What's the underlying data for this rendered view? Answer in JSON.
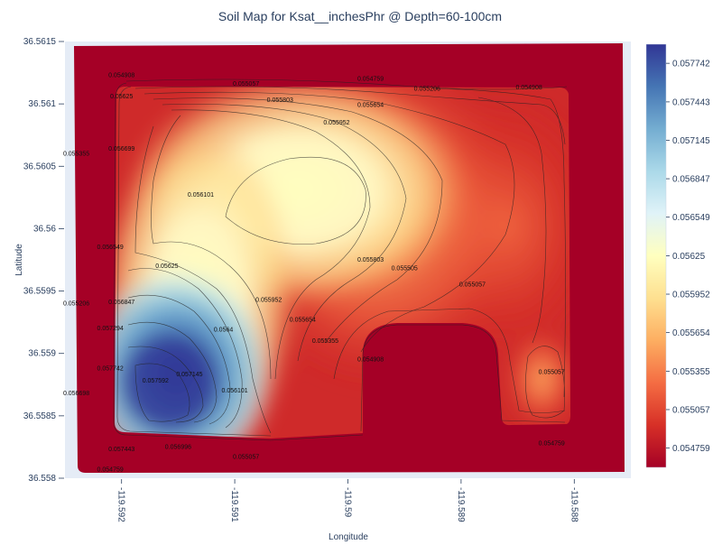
{
  "chart_data": {
    "type": "heatmap",
    "subtype": "contour",
    "title": "Soil Map for Ksat__inchesPhr @ Depth=60-100cm",
    "xlabel": "Longitude",
    "ylabel": "Latitude",
    "x_ticks": [
      "-119.592",
      "-119.591",
      "-119.59",
      "-119.589",
      "-119.588"
    ],
    "x_tick_values": [
      -119.592,
      -119.591,
      -119.59,
      -119.589,
      -119.588
    ],
    "xlim": [
      -119.5925,
      -119.5875
    ],
    "y_ticks": [
      "36.558",
      "36.5585",
      "36.559",
      "36.5595",
      "36.56",
      "36.5605",
      "36.561",
      "36.5615"
    ],
    "y_tick_values": [
      36.558,
      36.5585,
      36.559,
      36.5595,
      36.56,
      36.5605,
      36.561,
      36.5615
    ],
    "ylim": [
      36.558,
      36.5615
    ],
    "colorscale": [
      "#a50026",
      "#d73027",
      "#f46d43",
      "#fdae61",
      "#fee090",
      "#ffffbf",
      "#e0f3f8",
      "#abd9e9",
      "#74add1",
      "#4575b4",
      "#313695"
    ],
    "colorbar": {
      "min": 0.054609,
      "max": 0.05789,
      "ticks": [
        "0.057742",
        "0.057443",
        "0.057145",
        "0.056847",
        "0.056549",
        "0.05625",
        "0.055952",
        "0.055654",
        "0.055355",
        "0.055057",
        "0.054759"
      ],
      "tick_values": [
        0.057742,
        0.057443,
        0.057145,
        0.056847,
        0.056549,
        0.05625,
        0.055952,
        0.055654,
        0.055355,
        0.055057,
        0.054759
      ]
    },
    "contour_levels": [
      0.054759,
      0.054908,
      0.055057,
      0.055206,
      0.055355,
      0.055505,
      0.055654,
      0.055803,
      0.055952,
      0.056101,
      0.05625,
      0.0564,
      0.056549,
      0.056698,
      0.056847,
      0.056996,
      0.057145,
      0.057294,
      0.057443,
      0.057593,
      0.057742
    ],
    "contour_labels": [
      {
        "text": "0.054908",
        "lon": -119.592,
        "lat": 36.56123
      },
      {
        "text": "0.055057",
        "lon": -119.5909,
        "lat": 36.56116
      },
      {
        "text": "0.054759",
        "lon": -119.5898,
        "lat": 36.5612
      },
      {
        "text": "0.055206",
        "lon": -119.5893,
        "lat": 36.56112
      },
      {
        "text": "0.054908",
        "lon": -119.5884,
        "lat": 36.56113
      },
      {
        "text": "0.05625",
        "lon": -119.592,
        "lat": 36.56106
      },
      {
        "text": "0.055803",
        "lon": -119.5906,
        "lat": 36.56103
      },
      {
        "text": "0.055654",
        "lon": -119.5898,
        "lat": 36.56099
      },
      {
        "text": "0.055952",
        "lon": -119.5901,
        "lat": 36.56085
      },
      {
        "text": "0.056699",
        "lon": -119.592,
        "lat": 36.56064
      },
      {
        "text": "0.055355",
        "lon": -119.5924,
        "lat": 36.5606
      },
      {
        "text": "0.056101",
        "lon": -119.5913,
        "lat": 36.56027
      },
      {
        "text": "0.056549",
        "lon": -119.5921,
        "lat": 36.55985
      },
      {
        "text": "0.05625",
        "lon": -119.5916,
        "lat": 36.5597
      },
      {
        "text": "0.055803",
        "lon": -119.5898,
        "lat": 36.55975
      },
      {
        "text": "0.055505",
        "lon": -119.5895,
        "lat": 36.55968
      },
      {
        "text": "0.055057",
        "lon": -119.5889,
        "lat": 36.55955
      },
      {
        "text": "0.056847",
        "lon": -119.592,
        "lat": 36.55941
      },
      {
        "text": "0.055952",
        "lon": -119.5907,
        "lat": 36.55943
      },
      {
        "text": "0.055654",
        "lon": -119.5904,
        "lat": 36.55927
      },
      {
        "text": "0.0564",
        "lon": -119.5911,
        "lat": 36.55919
      },
      {
        "text": "0.057294",
        "lon": -119.5921,
        "lat": 36.5592
      },
      {
        "text": "0.055355",
        "lon": -119.5902,
        "lat": 36.5591
      },
      {
        "text": "0.054908",
        "lon": -119.5898,
        "lat": 36.55895
      },
      {
        "text": "0.055206",
        "lon": -119.5924,
        "lat": 36.5594
      },
      {
        "text": "0.057742",
        "lon": -119.5921,
        "lat": 36.55888
      },
      {
        "text": "0.057145",
        "lon": -119.5914,
        "lat": 36.55883
      },
      {
        "text": "0.057592",
        "lon": -119.5917,
        "lat": 36.55878
      },
      {
        "text": "0.056698",
        "lon": -119.5924,
        "lat": 36.55868
      },
      {
        "text": "0.056101",
        "lon": -119.591,
        "lat": 36.5587
      },
      {
        "text": "0.055057",
        "lon": -119.5882,
        "lat": 36.55885
      },
      {
        "text": "0.057443",
        "lon": -119.592,
        "lat": 36.55823
      },
      {
        "text": "0.056996",
        "lon": -119.5915,
        "lat": 36.55825
      },
      {
        "text": "0.055057",
        "lon": -119.5909,
        "lat": 36.55817
      },
      {
        "text": "0.054759",
        "lon": -119.5882,
        "lat": 36.55828
      },
      {
        "text": "0.054759",
        "lon": -119.5921,
        "lat": 36.55807
      }
    ]
  }
}
